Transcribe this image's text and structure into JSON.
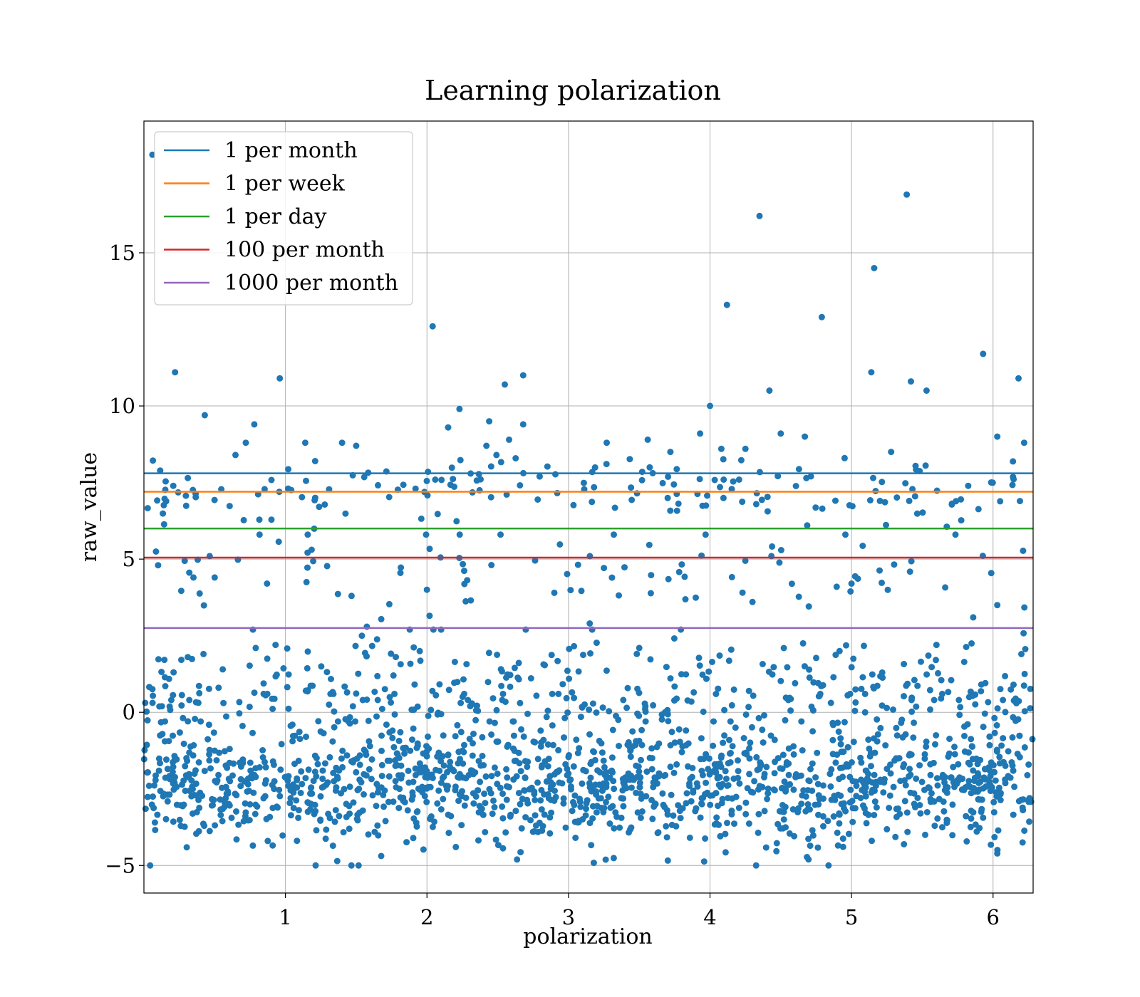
{
  "chart_data": {
    "type": "scatter",
    "title": "Learning polarization",
    "xlabel": "polarization",
    "ylabel": "raw_value",
    "xlim": [
      0.0,
      6.2832
    ],
    "ylim": [
      -5.9,
      19.3
    ],
    "xticks": [
      1,
      2,
      3,
      4,
      5,
      6
    ],
    "xtick_labels": [
      "1",
      "2",
      "3",
      "4",
      "5",
      "6"
    ],
    "yticks": [
      -5,
      0,
      5,
      10,
      15
    ],
    "ytick_labels": [
      "−5",
      "0",
      "5",
      "10",
      "15"
    ],
    "grid": true,
    "legend_position": "top-left",
    "scatter": {
      "color": "#1f77b4",
      "marker_radius": 4.5,
      "points": [
        [
          0.06,
          18.2
        ],
        [
          0.22,
          11.1
        ],
        [
          0.43,
          9.7
        ],
        [
          0.96,
          10.9
        ],
        [
          0.78,
          9.4
        ],
        [
          0.72,
          8.8
        ],
        [
          1.14,
          8.8
        ],
        [
          1.4,
          8.8
        ],
        [
          1.5,
          8.7
        ],
        [
          1.21,
          8.2
        ],
        [
          2.04,
          12.6
        ],
        [
          2.23,
          9.9
        ],
        [
          2.15,
          9.3
        ],
        [
          2.44,
          9.5
        ],
        [
          2.55,
          10.7
        ],
        [
          2.68,
          11.0
        ],
        [
          2.42,
          8.7
        ],
        [
          2.58,
          8.9
        ],
        [
          2.68,
          9.4
        ],
        [
          3.27,
          8.8
        ],
        [
          3.93,
          9.1
        ],
        [
          4.0,
          10.0
        ],
        [
          4.12,
          13.3
        ],
        [
          4.35,
          16.2
        ],
        [
          4.42,
          10.5
        ],
        [
          4.5,
          9.1
        ],
        [
          4.67,
          9.0
        ],
        [
          4.79,
          12.9
        ],
        [
          5.14,
          11.1
        ],
        [
          5.16,
          14.5
        ],
        [
          5.39,
          16.9
        ],
        [
          5.42,
          10.8
        ],
        [
          5.53,
          10.5
        ],
        [
          5.93,
          11.7
        ],
        [
          6.18,
          10.9
        ],
        [
          6.03,
          9.0
        ],
        [
          6.22,
          8.8
        ],
        [
          3.56,
          8.9
        ],
        [
          3.72,
          8.5
        ],
        [
          4.08,
          8.6
        ],
        [
          4.25,
          8.6
        ],
        [
          5.28,
          8.5
        ],
        [
          0.93,
          2.2
        ],
        [
          0.87,
          4.2
        ],
        [
          0.79,
          2.1
        ],
        [
          2.0,
          4.0
        ],
        [
          2.1,
          2.7
        ],
        [
          2.9,
          3.9
        ],
        [
          3.5,
          2.1
        ],
        [
          4.3,
          3.6
        ],
        [
          5.0,
          4.2
        ],
        [
          5.6,
          2.2
        ],
        [
          5.86,
          3.1
        ],
        [
          6.03,
          3.5
        ],
        [
          1.54,
          2.5
        ],
        [
          3.15,
          2.9
        ],
        [
          0.1,
          4.8
        ],
        [
          0.35,
          4.4
        ],
        [
          0.5,
          4.4
        ]
      ],
      "clusters": [
        {
          "count": 1450,
          "center": -2.3,
          "spread": 1.05,
          "min": -5.0,
          "max": 0.4
        },
        {
          "count": 200,
          "center": 0.4,
          "spread": 0.45,
          "min": -0.3,
          "max": 1.6
        },
        {
          "count": 130,
          "center": 1.5,
          "spread": 0.55,
          "min": 0.6,
          "max": 2.7
        },
        {
          "count": 90,
          "center": 4.5,
          "spread": 0.9,
          "min": 2.7,
          "max": 5.8
        },
        {
          "count": 180,
          "center": 7.2,
          "spread": 0.55,
          "min": 5.8,
          "max": 8.4
        }
      ]
    },
    "lines": [
      {
        "name": "1 per month",
        "y": 7.8,
        "color": "#1f77b4"
      },
      {
        "name": "1 per week",
        "y": 7.2,
        "color": "#ff7f0e"
      },
      {
        "name": "1 per day",
        "y": 6.0,
        "color": "#2ca02c"
      },
      {
        "name": "100 per month",
        "y": 5.05,
        "color": "#d62728"
      },
      {
        "name": "1000 per month",
        "y": 2.75,
        "color": "#9467bd"
      }
    ]
  }
}
